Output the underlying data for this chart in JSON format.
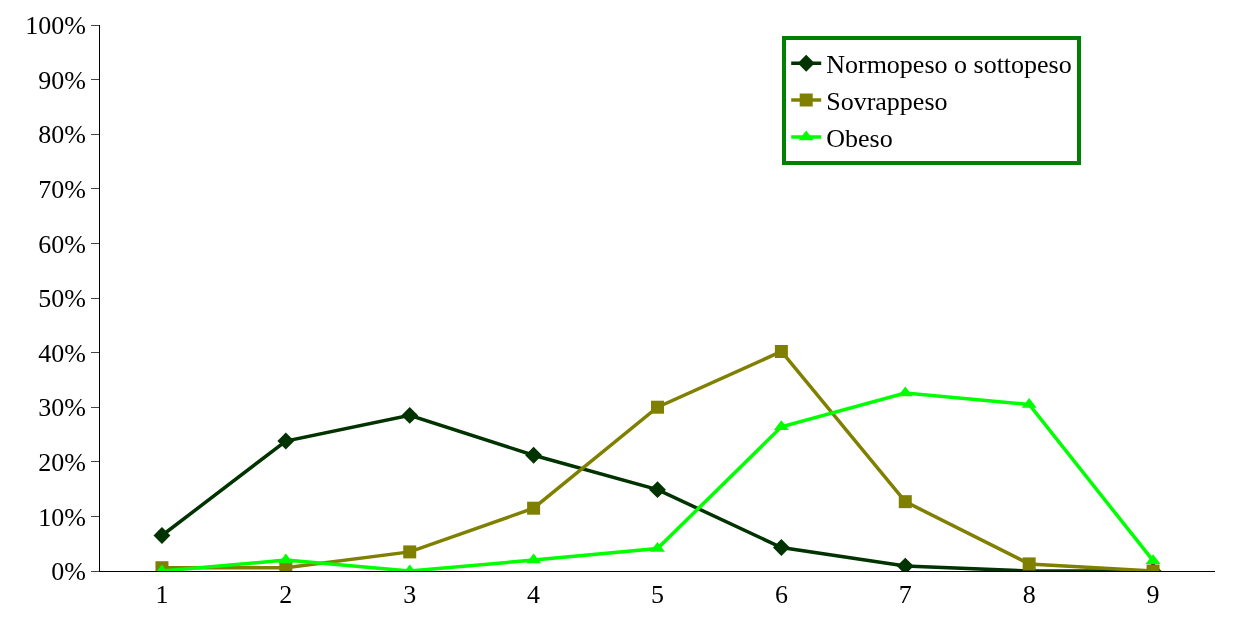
{
  "chart_data": {
    "type": "line",
    "categories": [
      "1",
      "2",
      "3",
      "4",
      "5",
      "6",
      "7",
      "8",
      "9"
    ],
    "series": [
      {
        "name": "Normopeso o sottopeso",
        "color": "#003300",
        "marker": "diamond",
        "values": [
          6.5,
          23.8,
          28.5,
          21.2,
          14.9,
          4.3,
          0.9,
          0,
          0
        ]
      },
      {
        "name": "Sovrappeso",
        "color": "#808000",
        "marker": "square",
        "values": [
          0.6,
          0.6,
          3.5,
          11.5,
          30.0,
          40.2,
          12.7,
          1.3,
          0
        ]
      },
      {
        "name": "Obeso",
        "color": "#00ff00",
        "marker": "triangle",
        "values": [
          0,
          2,
          0,
          2,
          4.1,
          26.4,
          32.6,
          30.5,
          1.9
        ]
      }
    ],
    "ylim": [
      0,
      100
    ],
    "yticks": [
      {
        "value": 0,
        "label": "0%"
      },
      {
        "value": 10,
        "label": "10%"
      },
      {
        "value": 20,
        "label": "20%"
      },
      {
        "value": 30,
        "label": "30%"
      },
      {
        "value": 40,
        "label": "40%"
      },
      {
        "value": 50,
        "label": "50%"
      },
      {
        "value": 60,
        "label": "60%"
      },
      {
        "value": 70,
        "label": "70%"
      },
      {
        "value": 80,
        "label": "80%"
      },
      {
        "value": 90,
        "label": "90%"
      },
      {
        "value": 100,
        "label": "100%"
      }
    ],
    "legend": "top right",
    "line_style": "solid"
  }
}
